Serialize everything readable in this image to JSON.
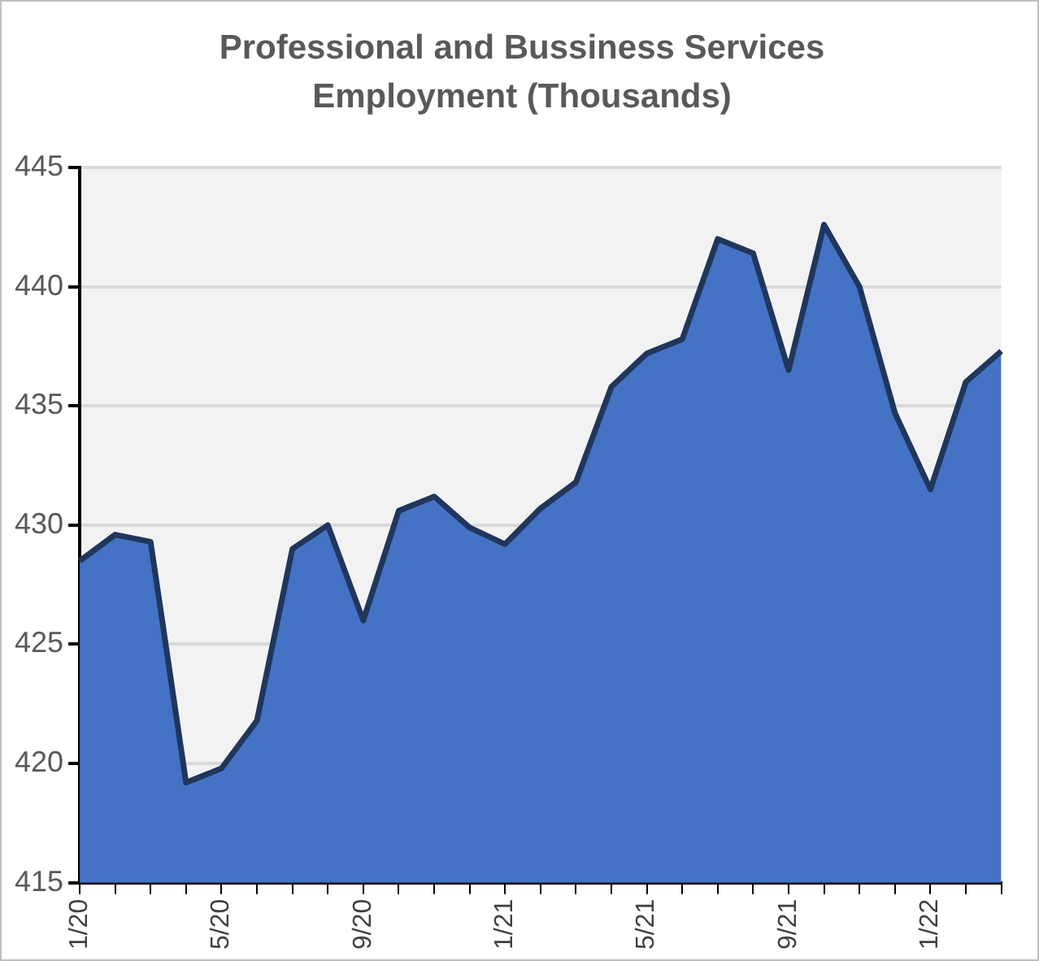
{
  "chart_data": {
    "type": "area",
    "title": "Professional and Bussiness Services Employment (Thousands)",
    "categories": [
      "1/20",
      null,
      null,
      null,
      "5/20",
      null,
      null,
      null,
      "9/20",
      null,
      null,
      null,
      "1/21",
      null,
      null,
      null,
      "5/21",
      null,
      null,
      null,
      "9/21",
      null,
      null,
      null,
      "1/22",
      null,
      null
    ],
    "series": [
      {
        "color": "#4472c4",
        "values": [
          428.5,
          429.6,
          429.3,
          419.2,
          419.8,
          421.8,
          429.0,
          430.0,
          426.0,
          430.6,
          431.2,
          429.9,
          429.2,
          430.7,
          431.8,
          435.8,
          437.2,
          437.8,
          442.0,
          441.4,
          436.5,
          442.6,
          440.0,
          434.7,
          431.5,
          436.0,
          437.3
        ]
      }
    ],
    "ylim": [
      415,
      445
    ],
    "yticks": [
      415,
      420,
      425,
      430,
      435,
      440,
      445
    ],
    "grid": "y",
    "legend": false,
    "marker": "none",
    "line_style": "solid"
  }
}
